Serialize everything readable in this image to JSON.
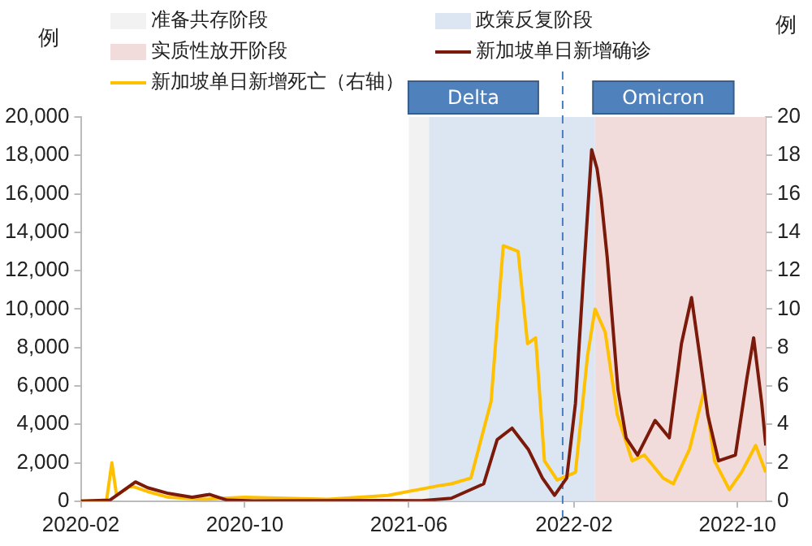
{
  "chart_data": {
    "type": "line",
    "ylabel": "例",
    "y2label": "例",
    "xlim": [
      "2020-02-01",
      "2022-11-12"
    ],
    "xticks": [
      "2020-02",
      "2020-10",
      "2021-06",
      "2022-02",
      "2022-10"
    ],
    "ylim": [
      0,
      20000
    ],
    "yticks": [
      {
        "value": 0,
        "label": "0"
      },
      {
        "value": 2000,
        "label": "2,000"
      },
      {
        "value": 4000,
        "label": "4,000"
      },
      {
        "value": 6000,
        "label": "6,000"
      },
      {
        "value": 8000,
        "label": "8,000"
      },
      {
        "value": 10000,
        "label": "10,000"
      },
      {
        "value": 12000,
        "label": "12,000"
      },
      {
        "value": 14000,
        "label": "14,000"
      },
      {
        "value": 16000,
        "label": "16,000"
      },
      {
        "value": 18000,
        "label": "18,000"
      },
      {
        "value": 20000,
        "label": "20,000"
      }
    ],
    "y2lim": [
      0,
      20
    ],
    "y2ticks": [
      0,
      2,
      4,
      6,
      8,
      10,
      12,
      14,
      16,
      18,
      20
    ],
    "grid": false,
    "legend": "top",
    "marker": "none",
    "line_style": "solid",
    "bands": [
      {
        "axis": "x",
        "from": "2021-06-01",
        "to": "2021-07-01",
        "label": "准备共存阶段",
        "color": "#f2f2f2"
      },
      {
        "axis": "x",
        "from": "2021-07-01",
        "to": "2022-03-04",
        "label": "政策反复阶段",
        "color": "#dce6f2"
      },
      {
        "axis": "x",
        "from": "2022-03-04",
        "to": "2022-11-12",
        "label": "实质性放开阶段",
        "color": "#f2dcdb"
      }
    ],
    "ref_lines": [
      {
        "axis": "x",
        "value": "2022-01-15",
        "label": null,
        "color": "#4a7ebb",
        "line_style": "dashed"
      }
    ],
    "annotations": [
      "Delta",
      "Omicron"
    ],
    "series": [
      {
        "name": "新加坡单日新增确诊",
        "color": "#7b1a0a",
        "x": [
          "2020-02-01",
          "2020-03-15",
          "2020-04-22",
          "2020-05-10",
          "2020-06-10",
          "2020-07-15",
          "2020-08-10",
          "2020-09-05",
          "2020-10-15",
          "2021-02-01",
          "2021-05-01",
          "2021-06-20",
          "2021-08-03",
          "2021-09-20",
          "2021-10-10",
          "2021-11-01",
          "2021-11-25",
          "2021-12-16",
          "2022-01-03",
          "2022-01-21",
          "2022-02-03",
          "2022-02-15",
          "2022-02-27",
          "2022-03-07",
          "2022-03-13",
          "2022-03-22",
          "2022-04-07",
          "2022-04-19",
          "2022-05-06",
          "2022-05-19",
          "2022-06-01",
          "2022-06-22",
          "2022-07-10",
          "2022-07-25",
          "2022-08-06",
          "2022-08-18",
          "2022-09-03",
          "2022-09-28",
          "2022-10-15",
          "2022-10-25",
          "2022-11-06",
          "2022-11-12"
        ],
        "values": [
          0,
          50,
          1000,
          700,
          400,
          200,
          350,
          50,
          10,
          20,
          30,
          20,
          150,
          900,
          3200,
          3800,
          2700,
          1200,
          300,
          1200,
          5100,
          11800,
          18300,
          17300,
          15800,
          12700,
          5800,
          3300,
          2400,
          3300,
          4200,
          3300,
          8200,
          10600,
          7600,
          4500,
          2100,
          2400,
          6400,
          8500,
          5100,
          2900
        ]
      },
      {
        "name": "新加坡单日新增死亡（右轴）",
        "color": "#ffc000",
        "axis": "y2",
        "x": [
          "2020-02-01",
          "2020-03-10",
          "2020-03-18",
          "2020-03-25",
          "2020-04-15",
          "2020-05-10",
          "2020-06-10",
          "2020-08-01",
          "2020-10-01",
          "2021-02-01",
          "2021-05-01",
          "2021-07-15",
          "2021-08-03",
          "2021-09-01",
          "2021-10-01",
          "2021-10-19",
          "2021-11-10",
          "2021-11-24",
          "2021-12-06",
          "2021-12-19",
          "2022-01-07",
          "2022-02-03",
          "2022-02-21",
          "2022-03-04",
          "2022-03-19",
          "2022-04-06",
          "2022-04-28",
          "2022-05-16",
          "2022-06-13",
          "2022-06-28",
          "2022-07-22",
          "2022-08-13",
          "2022-08-28",
          "2022-09-19",
          "2022-10-07",
          "2022-10-28",
          "2022-11-12"
        ],
        "values": [
          0,
          0,
          2,
          0.3,
          0.8,
          0.5,
          0.2,
          0.1,
          0.2,
          0.1,
          0.3,
          0.8,
          0.9,
          1.2,
          5.2,
          13.3,
          13.0,
          8.2,
          8.5,
          2.1,
          1.1,
          1.5,
          7.6,
          10.0,
          8.8,
          4.5,
          2.1,
          2.4,
          1.2,
          0.9,
          2.7,
          5.8,
          2.1,
          0.6,
          1.5,
          2.9,
          1.5
        ]
      }
    ]
  }
}
